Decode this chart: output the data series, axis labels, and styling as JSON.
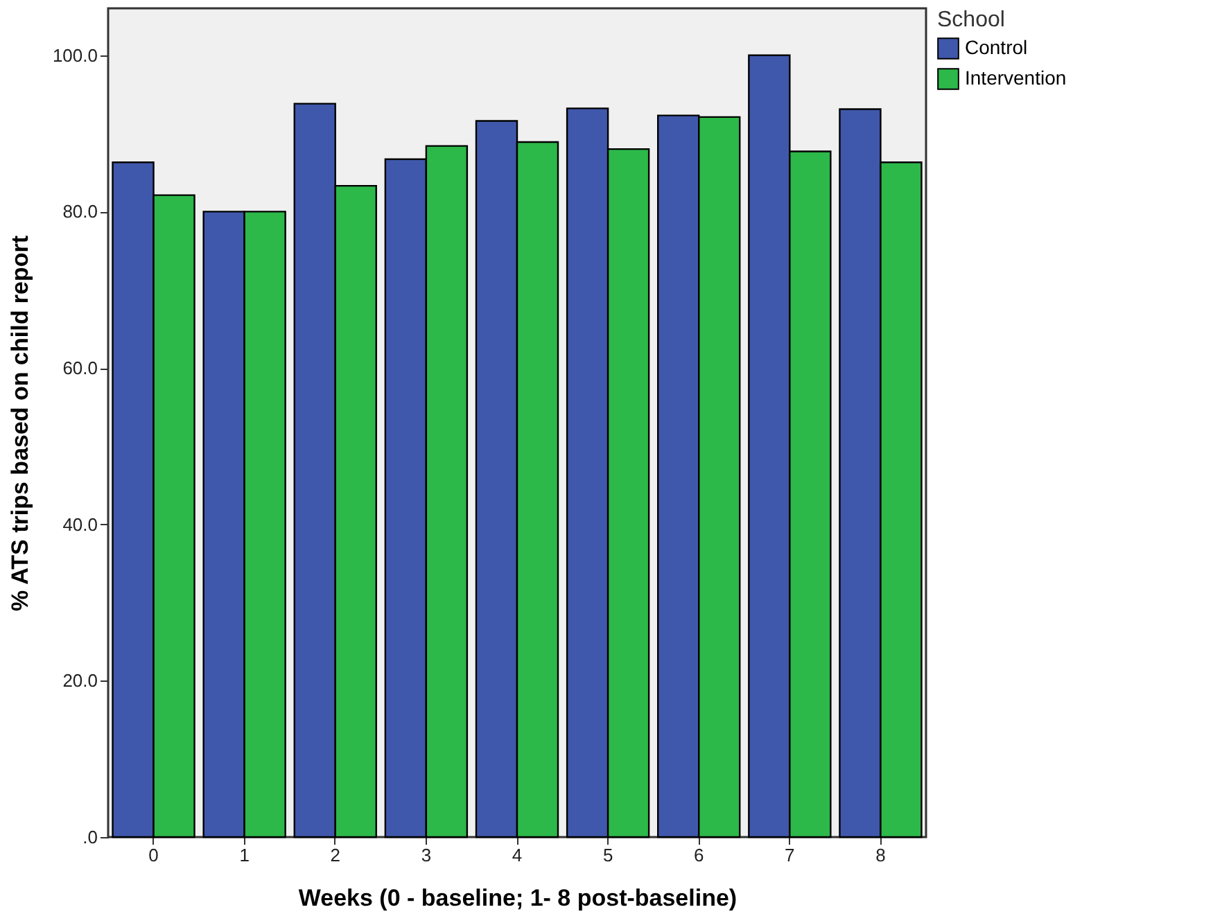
{
  "chart_data": {
    "type": "bar",
    "xlabel": "Weeks (0 - baseline; 1- 8 post-baseline)",
    "ylabel": "% ATS trips based on child report",
    "legend_title": "School",
    "categories": [
      "0",
      "1",
      "2",
      "3",
      "4",
      "5",
      "6",
      "7",
      "8"
    ],
    "series": [
      {
        "name": "Control",
        "color": "#3f58ab",
        "values": [
          86.3,
          80.0,
          93.8,
          86.7,
          91.6,
          93.2,
          92.3,
          100.0,
          93.1
        ]
      },
      {
        "name": "Intervention",
        "color": "#2db84a",
        "values": [
          82.1,
          80.0,
          83.3,
          88.4,
          88.9,
          88.0,
          92.1,
          87.7,
          86.3
        ]
      }
    ],
    "ylim": [
      0,
      106
    ],
    "yticks": [
      {
        "value": 0,
        "label": ".0"
      },
      {
        "value": 20,
        "label": "20.0"
      },
      {
        "value": 40,
        "label": "40.0"
      },
      {
        "value": 60,
        "label": "60.0"
      },
      {
        "value": 80,
        "label": "80.0"
      },
      {
        "value": 100,
        "label": "100.0"
      }
    ],
    "legend": "top right",
    "grid": false
  }
}
